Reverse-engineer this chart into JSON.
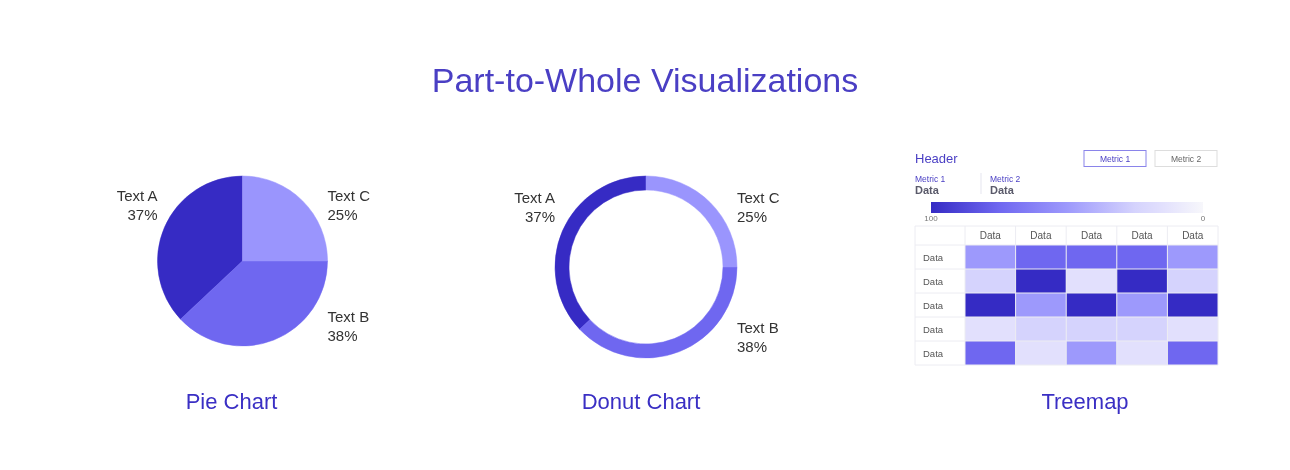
{
  "chart_data": [
    {
      "type": "other",
      "title": "Part-to-Whole Visualizations"
    },
    {
      "type": "pie",
      "title": "Pie Chart",
      "categories": [
        "Text A",
        "Text B",
        "Text C"
      ],
      "values": [
        37,
        38,
        25
      ],
      "colors": [
        "#362bc4",
        "#6f67f0",
        "#9a95fd"
      ],
      "value_labels": [
        "37%",
        "38%",
        "25%"
      ]
    },
    {
      "type": "donut",
      "title": "Donut Chart",
      "categories": [
        "Text A",
        "Text B",
        "Text C"
      ],
      "values": [
        37,
        38,
        25
      ],
      "colors": [
        "#362bc4",
        "#6f67f0",
        "#9a95fd"
      ],
      "value_labels": [
        "37%",
        "38%",
        "25%"
      ]
    },
    {
      "type": "heatmap",
      "title": "Treemap",
      "subtitle": "Header",
      "annotations": [
        "Metric 1",
        "Metric 2",
        "Metric 1",
        "Data",
        "Metric 2",
        "Data"
      ],
      "categories": [
        "Data",
        "Data",
        "Data",
        "Data",
        "Data"
      ],
      "y_categories": [
        "Data",
        "Data",
        "Data",
        "Data",
        "Data"
      ],
      "cells": [
        [
          50,
          75,
          75,
          75,
          50
        ],
        [
          25,
          100,
          15,
          100,
          25
        ],
        [
          100,
          50,
          100,
          50,
          100
        ],
        [
          15,
          25,
          25,
          25,
          15
        ],
        [
          75,
          15,
          50,
          15,
          75
        ]
      ],
      "clim": [
        100,
        0
      ],
      "cticks": [
        100,
        0
      ],
      "grid": true
    }
  ]
}
